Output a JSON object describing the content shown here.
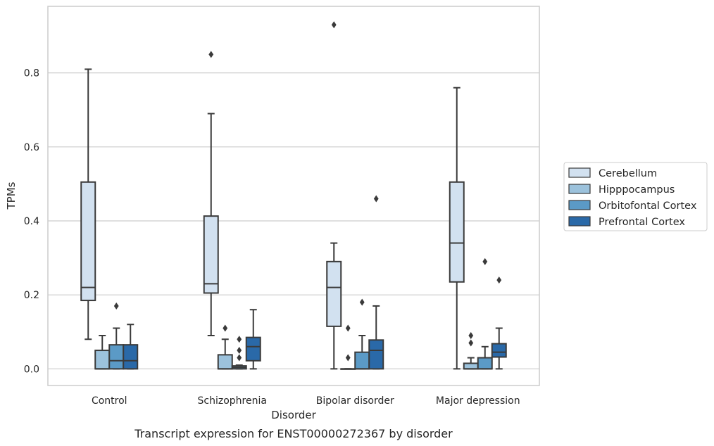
{
  "chart_data": {
    "type": "box",
    "caption": "Transcript expression for ENST00000272367 by disorder",
    "xlabel": "Disorder",
    "ylabel": "TPMs",
    "ylim": [
      -0.045,
      0.98
    ],
    "yticks": [
      0.0,
      0.2,
      0.4,
      0.6,
      0.8
    ],
    "ytick_labels": [
      "0.0",
      "0.2",
      "0.4",
      "0.6",
      "0.8"
    ],
    "grid": "horizontal",
    "legend_position": "right",
    "categories": [
      "Control",
      "Schizophrenia",
      "Bipolar disorder",
      "Major depression"
    ],
    "series": [
      {
        "name": "Cerebellum",
        "color": "#d2e1f0",
        "boxes": [
          {
            "whisker_low": 0.08,
            "q1": 0.185,
            "median": 0.22,
            "q3": 0.505,
            "whisker_high": 0.81,
            "outliers": []
          },
          {
            "whisker_low": 0.09,
            "q1": 0.205,
            "median": 0.23,
            "q3": 0.413,
            "whisker_high": 0.69,
            "outliers": [
              0.85
            ]
          },
          {
            "whisker_low": 0.0,
            "q1": 0.115,
            "median": 0.22,
            "q3": 0.29,
            "whisker_high": 0.34,
            "outliers": [
              0.93
            ]
          },
          {
            "whisker_low": 0.0,
            "q1": 0.235,
            "median": 0.34,
            "q3": 0.505,
            "whisker_high": 0.76,
            "outliers": []
          }
        ]
      },
      {
        "name": "Hipppocampus",
        "color": "#9cc2dc",
        "boxes": [
          {
            "whisker_low": 0.0,
            "q1": 0.0,
            "median": 0.0,
            "q3": 0.05,
            "whisker_high": 0.09,
            "outliers": []
          },
          {
            "whisker_low": 0.0,
            "q1": 0.0,
            "median": 0.0,
            "q3": 0.038,
            "whisker_high": 0.08,
            "outliers": [
              0.11
            ]
          },
          {
            "whisker_low": 0.0,
            "q1": 0.0,
            "median": 0.0,
            "q3": 0.0,
            "whisker_high": 0.0,
            "outliers": [
              0.03,
              0.11
            ]
          },
          {
            "whisker_low": 0.0,
            "q1": 0.0,
            "median": 0.0,
            "q3": 0.015,
            "whisker_high": 0.03,
            "outliers": [
              0.07,
              0.09
            ]
          }
        ]
      },
      {
        "name": "Orbitofontal Cortex",
        "color": "#5b9ac6",
        "boxes": [
          {
            "whisker_low": 0.0,
            "q1": 0.0,
            "median": 0.022,
            "q3": 0.065,
            "whisker_high": 0.11,
            "outliers": [
              0.17
            ]
          },
          {
            "whisker_low": 0.0,
            "q1": 0.0,
            "median": 0.004,
            "q3": 0.008,
            "whisker_high": 0.01,
            "outliers": [
              0.03,
              0.05,
              0.08
            ]
          },
          {
            "whisker_low": 0.0,
            "q1": 0.0,
            "median": 0.0,
            "q3": 0.045,
            "whisker_high": 0.09,
            "outliers": [
              0.18
            ]
          },
          {
            "whisker_low": 0.0,
            "q1": 0.0,
            "median": 0.0,
            "q3": 0.03,
            "whisker_high": 0.06,
            "outliers": [
              0.29
            ]
          }
        ]
      },
      {
        "name": "Prefrontal Cortex",
        "color": "#2a69a8",
        "boxes": [
          {
            "whisker_low": 0.0,
            "q1": 0.0,
            "median": 0.022,
            "q3": 0.065,
            "whisker_high": 0.12,
            "outliers": []
          },
          {
            "whisker_low": 0.0,
            "q1": 0.022,
            "median": 0.06,
            "q3": 0.085,
            "whisker_high": 0.16,
            "outliers": []
          },
          {
            "whisker_low": 0.0,
            "q1": 0.0,
            "median": 0.05,
            "q3": 0.078,
            "whisker_high": 0.17,
            "outliers": [
              0.46
            ]
          },
          {
            "whisker_low": 0.0,
            "q1": 0.032,
            "median": 0.045,
            "q3": 0.068,
            "whisker_high": 0.11,
            "outliers": [
              0.24
            ]
          }
        ]
      }
    ]
  }
}
